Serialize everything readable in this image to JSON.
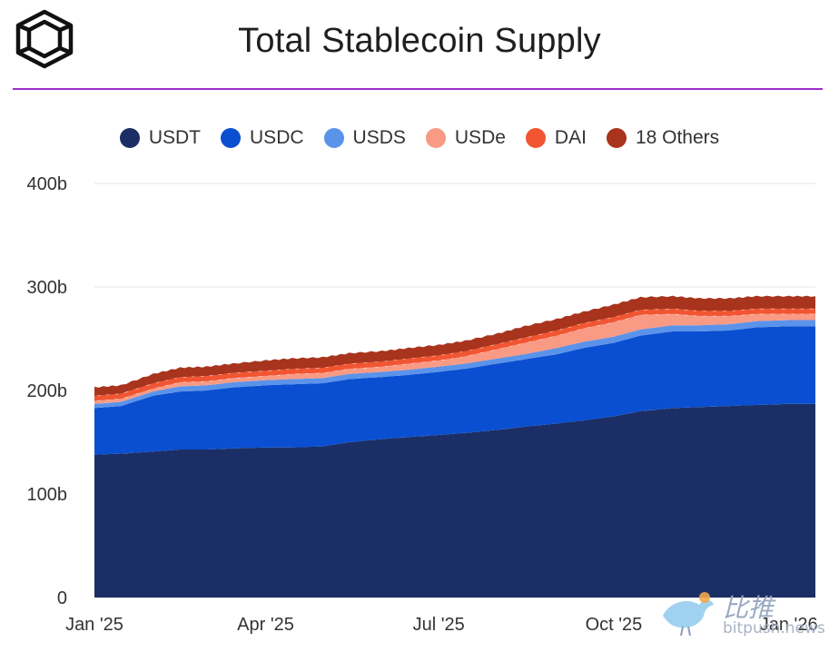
{
  "chart_data": {
    "type": "area",
    "stacked": true,
    "title": "Total Stablecoin Supply",
    "legend_position": "top",
    "grid": true,
    "ylim": [
      0,
      400
    ],
    "y_ticks": [
      "0",
      "100b",
      "200b",
      "300b",
      "400b"
    ],
    "y_tick_values": [
      0,
      100,
      200,
      300,
      400
    ],
    "x_ticks": [
      {
        "label": "Jan '25",
        "date": "2025-01-01"
      },
      {
        "label": "Apr '25",
        "date": "2025-04-01"
      },
      {
        "label": "Jul '25",
        "date": "2025-07-01"
      },
      {
        "label": "Oct '25",
        "date": "2025-10-01"
      },
      {
        "label": "Jan '26",
        "date": "2026-01-01"
      }
    ],
    "x": [
      "2025-01-01",
      "2025-01-15",
      "2025-02-01",
      "2025-02-15",
      "2025-03-01",
      "2025-03-15",
      "2025-04-01",
      "2025-04-15",
      "2025-05-01",
      "2025-05-15",
      "2025-06-01",
      "2025-06-15",
      "2025-07-01",
      "2025-07-15",
      "2025-08-01",
      "2025-08-15",
      "2025-09-01",
      "2025-09-15",
      "2025-10-01",
      "2025-10-15",
      "2025-11-01",
      "2025-11-15",
      "2025-12-01",
      "2025-12-15",
      "2026-01-01",
      "2026-01-15"
    ],
    "series": [
      {
        "name": "USDT",
        "color": "#1b2f66",
        "values": [
          138,
          139,
          141,
          143,
          143,
          144,
          145,
          145,
          146,
          150,
          153,
          155,
          157,
          159,
          162,
          165,
          168,
          171,
          175,
          180,
          183,
          184,
          185,
          186,
          187,
          187
        ]
      },
      {
        "name": "USDC",
        "color": "#0a4fd1",
        "values": [
          45,
          46,
          54,
          56,
          57,
          59,
          60,
          61,
          61,
          61,
          60,
          60,
          61,
          62,
          64,
          65,
          67,
          70,
          71,
          73,
          74,
          73,
          73,
          75,
          75,
          75
        ]
      },
      {
        "name": "USDS",
        "color": "#5b93ea",
        "values": [
          4,
          4,
          4,
          5,
          5,
          5,
          5,
          5,
          5,
          5,
          5,
          5,
          5,
          5,
          5,
          5,
          6,
          6,
          6,
          6,
          6,
          6,
          6,
          6,
          6,
          6
        ]
      },
      {
        "name": "USDe",
        "color": "#f99a84",
        "values": [
          3,
          3,
          3,
          4,
          4,
          4,
          4,
          5,
          5,
          5,
          5,
          6,
          6,
          7,
          9,
          11,
          12,
          13,
          14,
          14,
          11,
          9,
          8,
          7,
          6,
          6
        ]
      },
      {
        "name": "DAI",
        "color": "#f15532",
        "values": [
          5,
          5,
          5,
          5,
          5,
          5,
          5,
          5,
          5,
          5,
          5,
          5,
          5,
          5,
          5,
          5,
          5,
          5,
          5,
          5,
          5,
          5,
          5,
          5,
          5,
          5
        ]
      },
      {
        "name": "18 Others",
        "color": "#a8341d",
        "values": [
          8,
          8,
          9,
          9,
          9,
          9,
          10,
          10,
          10,
          10,
          10,
          10,
          10,
          10,
          10,
          11,
          11,
          11,
          12,
          12,
          12,
          12,
          12,
          12,
          12,
          12
        ]
      }
    ]
  },
  "watermark": {
    "text": "比推",
    "subtext": "bitpush.news"
  }
}
